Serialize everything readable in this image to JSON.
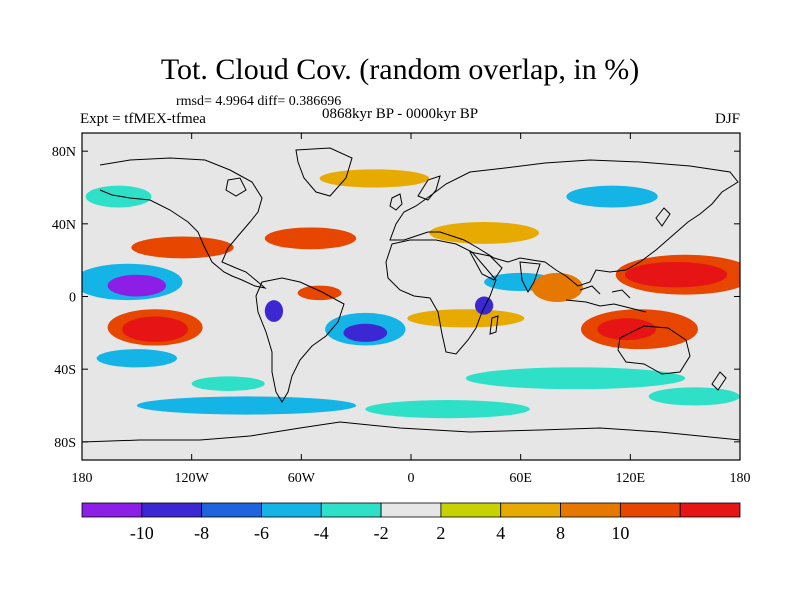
{
  "title": "Tot. Cloud Cov. (random overlap, in %)",
  "stats": "rmsd= 4.9964 diff= 0.386696",
  "experiment": "Expt = tfMEX-tfmea",
  "period": "0868kyr BP - 0000kyr BP",
  "season": "DJF",
  "map": {
    "lat_ticks": [
      {
        "label": "80N",
        "lat": 80
      },
      {
        "label": "40N",
        "lat": 40
      },
      {
        "label": "0",
        "lat": 0
      },
      {
        "label": "40S",
        "lat": -40
      },
      {
        "label": "80S",
        "lat": -80
      }
    ],
    "lon_ticks": [
      {
        "label": "180",
        "lon": -180
      },
      {
        "label": "120W",
        "lon": -120
      },
      {
        "label": "60W",
        "lon": -60
      },
      {
        "label": "0",
        "lon": 0
      },
      {
        "label": "60E",
        "lon": 60
      },
      {
        "label": "120E",
        "lon": 120
      },
      {
        "label": "180",
        "lon": 180
      }
    ],
    "lat_range": [
      -90,
      90
    ],
    "lon_range": [
      -180,
      180
    ]
  },
  "colorbar": {
    "colors": [
      "#8c1ee6",
      "#3c28d2",
      "#1e64dc",
      "#14b4e6",
      "#2ee0c8",
      "#e6e6e6",
      "#c8d200",
      "#e6aa00",
      "#e67800",
      "#e64600",
      "#e61414"
    ],
    "labels": [
      {
        "text": "-10",
        "boundary": 1
      },
      {
        "text": "-8",
        "boundary": 2
      },
      {
        "text": "-6",
        "boundary": 3
      },
      {
        "text": "-4",
        "boundary": 4
      },
      {
        "text": "-2",
        "boundary": 5
      },
      {
        "text": "2",
        "boundary": 6
      },
      {
        "text": "4",
        "boundary": 7
      },
      {
        "text": "8",
        "boundary": 8
      },
      {
        "text": "10",
        "boundary": 9
      }
    ]
  },
  "regions": [
    {
      "level": 3,
      "lon": -155,
      "lat": 8,
      "rlon": 30,
      "rlat": 10
    },
    {
      "level": 0,
      "lon": -150,
      "lat": 6,
      "rlon": 16,
      "rlat": 6
    },
    {
      "level": 9,
      "lon": -140,
      "lat": -17,
      "rlon": 26,
      "rlat": 10
    },
    {
      "level": 10,
      "lon": -140,
      "lat": -18,
      "rlon": 18,
      "rlat": 7
    },
    {
      "level": 9,
      "lon": -125,
      "lat": 27,
      "rlon": 28,
      "rlat": 6
    },
    {
      "level": 3,
      "lon": -150,
      "lat": -34,
      "rlon": 22,
      "rlat": 5
    },
    {
      "level": 3,
      "lon": -25,
      "lat": -18,
      "rlon": 22,
      "rlat": 9
    },
    {
      "level": 1,
      "lon": -25,
      "lat": -20,
      "rlon": 12,
      "rlat": 5
    },
    {
      "level": 9,
      "lon": -50,
      "lat": 2,
      "rlon": 12,
      "rlat": 4
    },
    {
      "level": 9,
      "lon": -55,
      "lat": 32,
      "rlon": 25,
      "rlat": 6
    },
    {
      "level": 9,
      "lon": 150,
      "lat": 12,
      "rlon": 38,
      "rlat": 11
    },
    {
      "level": 10,
      "lon": 145,
      "lat": 12,
      "rlon": 28,
      "rlat": 7
    },
    {
      "level": 9,
      "lon": 125,
      "lat": -18,
      "rlon": 32,
      "rlat": 11
    },
    {
      "level": 10,
      "lon": 118,
      "lat": -18,
      "rlon": 16,
      "rlat": 6
    },
    {
      "level": 7,
      "lon": 30,
      "lat": -12,
      "rlon": 32,
      "rlat": 5
    },
    {
      "level": 4,
      "lon": 90,
      "lat": -45,
      "rlon": 60,
      "rlat": 6
    },
    {
      "level": 3,
      "lon": -90,
      "lat": -60,
      "rlon": 60,
      "rlat": 5
    },
    {
      "level": 4,
      "lon": 20,
      "lat": -62,
      "rlon": 45,
      "rlat": 5
    },
    {
      "level": 7,
      "lon": 40,
      "lat": 35,
      "rlon": 30,
      "rlat": 6
    },
    {
      "level": 3,
      "lon": 110,
      "lat": 55,
      "rlon": 25,
      "rlat": 6
    },
    {
      "level": 7,
      "lon": -20,
      "lat": 65,
      "rlon": 30,
      "rlat": 5
    },
    {
      "level": 4,
      "lon": -160,
      "lat": 55,
      "rlon": 18,
      "rlat": 6
    },
    {
      "level": 3,
      "lon": 60,
      "lat": 8,
      "rlon": 20,
      "rlat": 5
    },
    {
      "level": 8,
      "lon": 80,
      "lat": 5,
      "rlon": 14,
      "rlat": 8
    },
    {
      "level": 1,
      "lon": -75,
      "lat": -8,
      "rlon": 5,
      "rlat": 6
    },
    {
      "level": 1,
      "lon": 40,
      "lat": -5,
      "rlon": 5,
      "rlat": 5
    },
    {
      "level": 4,
      "lon": 155,
      "lat": -55,
      "rlon": 25,
      "rlat": 5
    },
    {
      "level": 4,
      "lon": -100,
      "lat": -48,
      "rlon": 20,
      "rlat": 4
    }
  ]
}
